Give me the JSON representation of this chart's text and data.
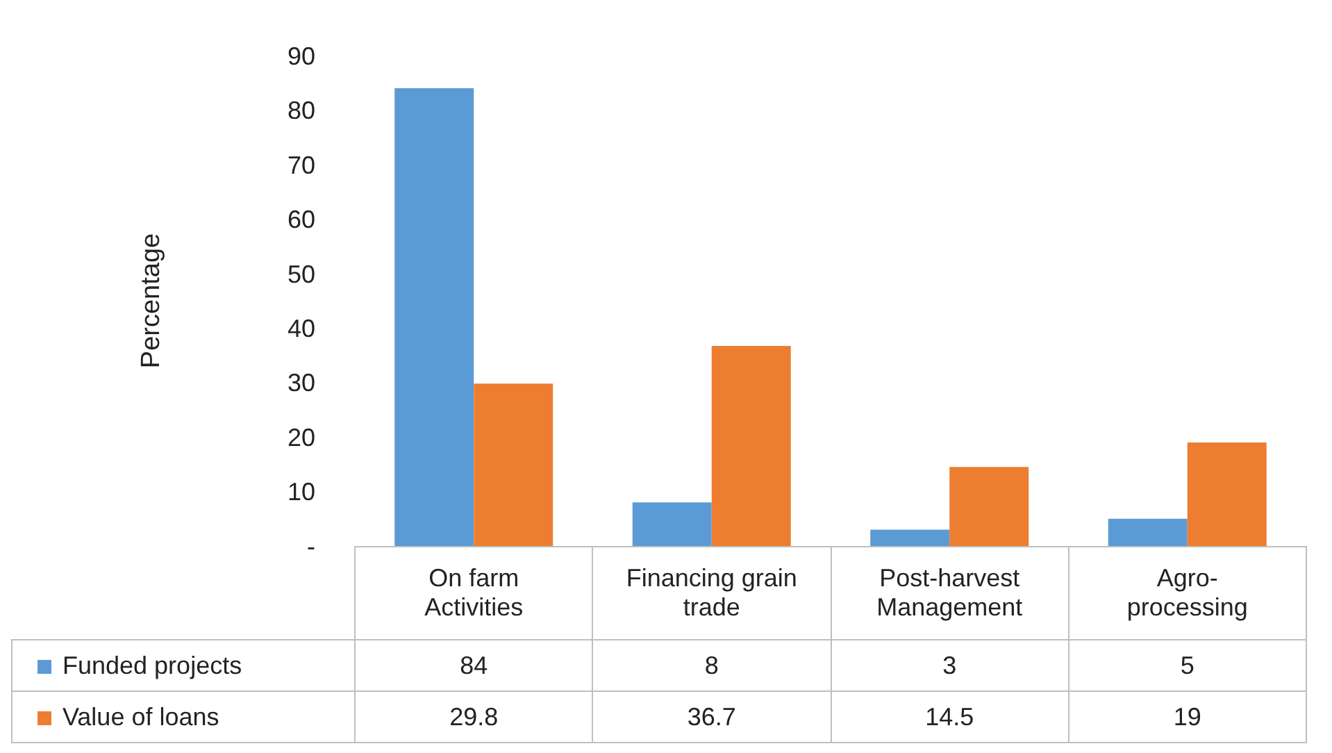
{
  "chart_data": {
    "type": "bar",
    "ylabel": "Percentage",
    "categories": [
      "On farm Activities",
      "Financing grain trade",
      "Post-harvest Management",
      "Agro-processing"
    ],
    "series": [
      {
        "name": "Funded projects",
        "color": "#5b9bd5",
        "values": [
          84,
          8,
          3,
          5
        ]
      },
      {
        "name": "Value of loans",
        "color": "#ed7d31",
        "values": [
          29.8,
          36.7,
          14.5,
          19
        ]
      }
    ],
    "ylim": [
      0,
      90
    ],
    "yticks": [
      {
        "value": 0,
        "label": "-"
      },
      10,
      20,
      30,
      40,
      50,
      60,
      70,
      80,
      90
    ],
    "grid": false,
    "legend": "bottom",
    "data_labels": true
  }
}
